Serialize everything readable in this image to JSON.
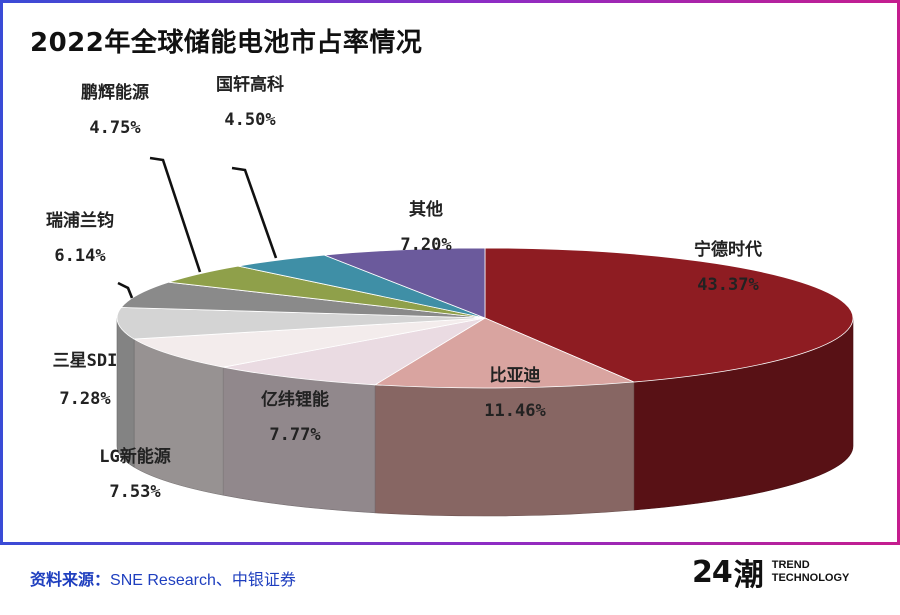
{
  "title": "2022年全球储能电池市占率情况",
  "source_label": "资料来源：",
  "source_text": "SNE Research、中银证券",
  "logo": {
    "number": "24",
    "glyph": "潮",
    "line1": "TREND",
    "line2": "TECHNOLOGY"
  },
  "chart_data": {
    "type": "pie",
    "title": "2022年全球储能电池市占率情况",
    "slices": [
      {
        "name": "宁德时代",
        "value": 43.37,
        "label": "43.37%",
        "color": "#8e1c22"
      },
      {
        "name": "比亚迪",
        "value": 11.46,
        "label": "11.46%",
        "color": "#d9a4a0"
      },
      {
        "name": "亿纬锂能",
        "value": 7.77,
        "label": "7.77%",
        "color": "#eadbe2"
      },
      {
        "name": "LG新能源",
        "value": 7.53,
        "label": "7.53%",
        "color": "#f3ecec"
      },
      {
        "name": "三星SDI",
        "value": 7.28,
        "label": "7.28%",
        "color": "#d4d4d4"
      },
      {
        "name": "瑞浦兰钧",
        "value": 6.14,
        "label": "6.14%",
        "color": "#8a8a8a"
      },
      {
        "name": "鹏辉能源",
        "value": 4.75,
        "label": "4.75%",
        "color": "#8fa04a"
      },
      {
        "name": "国轩高科",
        "value": 4.5,
        "label": "4.50%",
        "color": "#3f8fa6"
      },
      {
        "name": "其他",
        "value": 7.2,
        "label": "7.20%",
        "color": "#6b5a9c"
      }
    ],
    "legend": "none",
    "style": "3d-exploded"
  }
}
